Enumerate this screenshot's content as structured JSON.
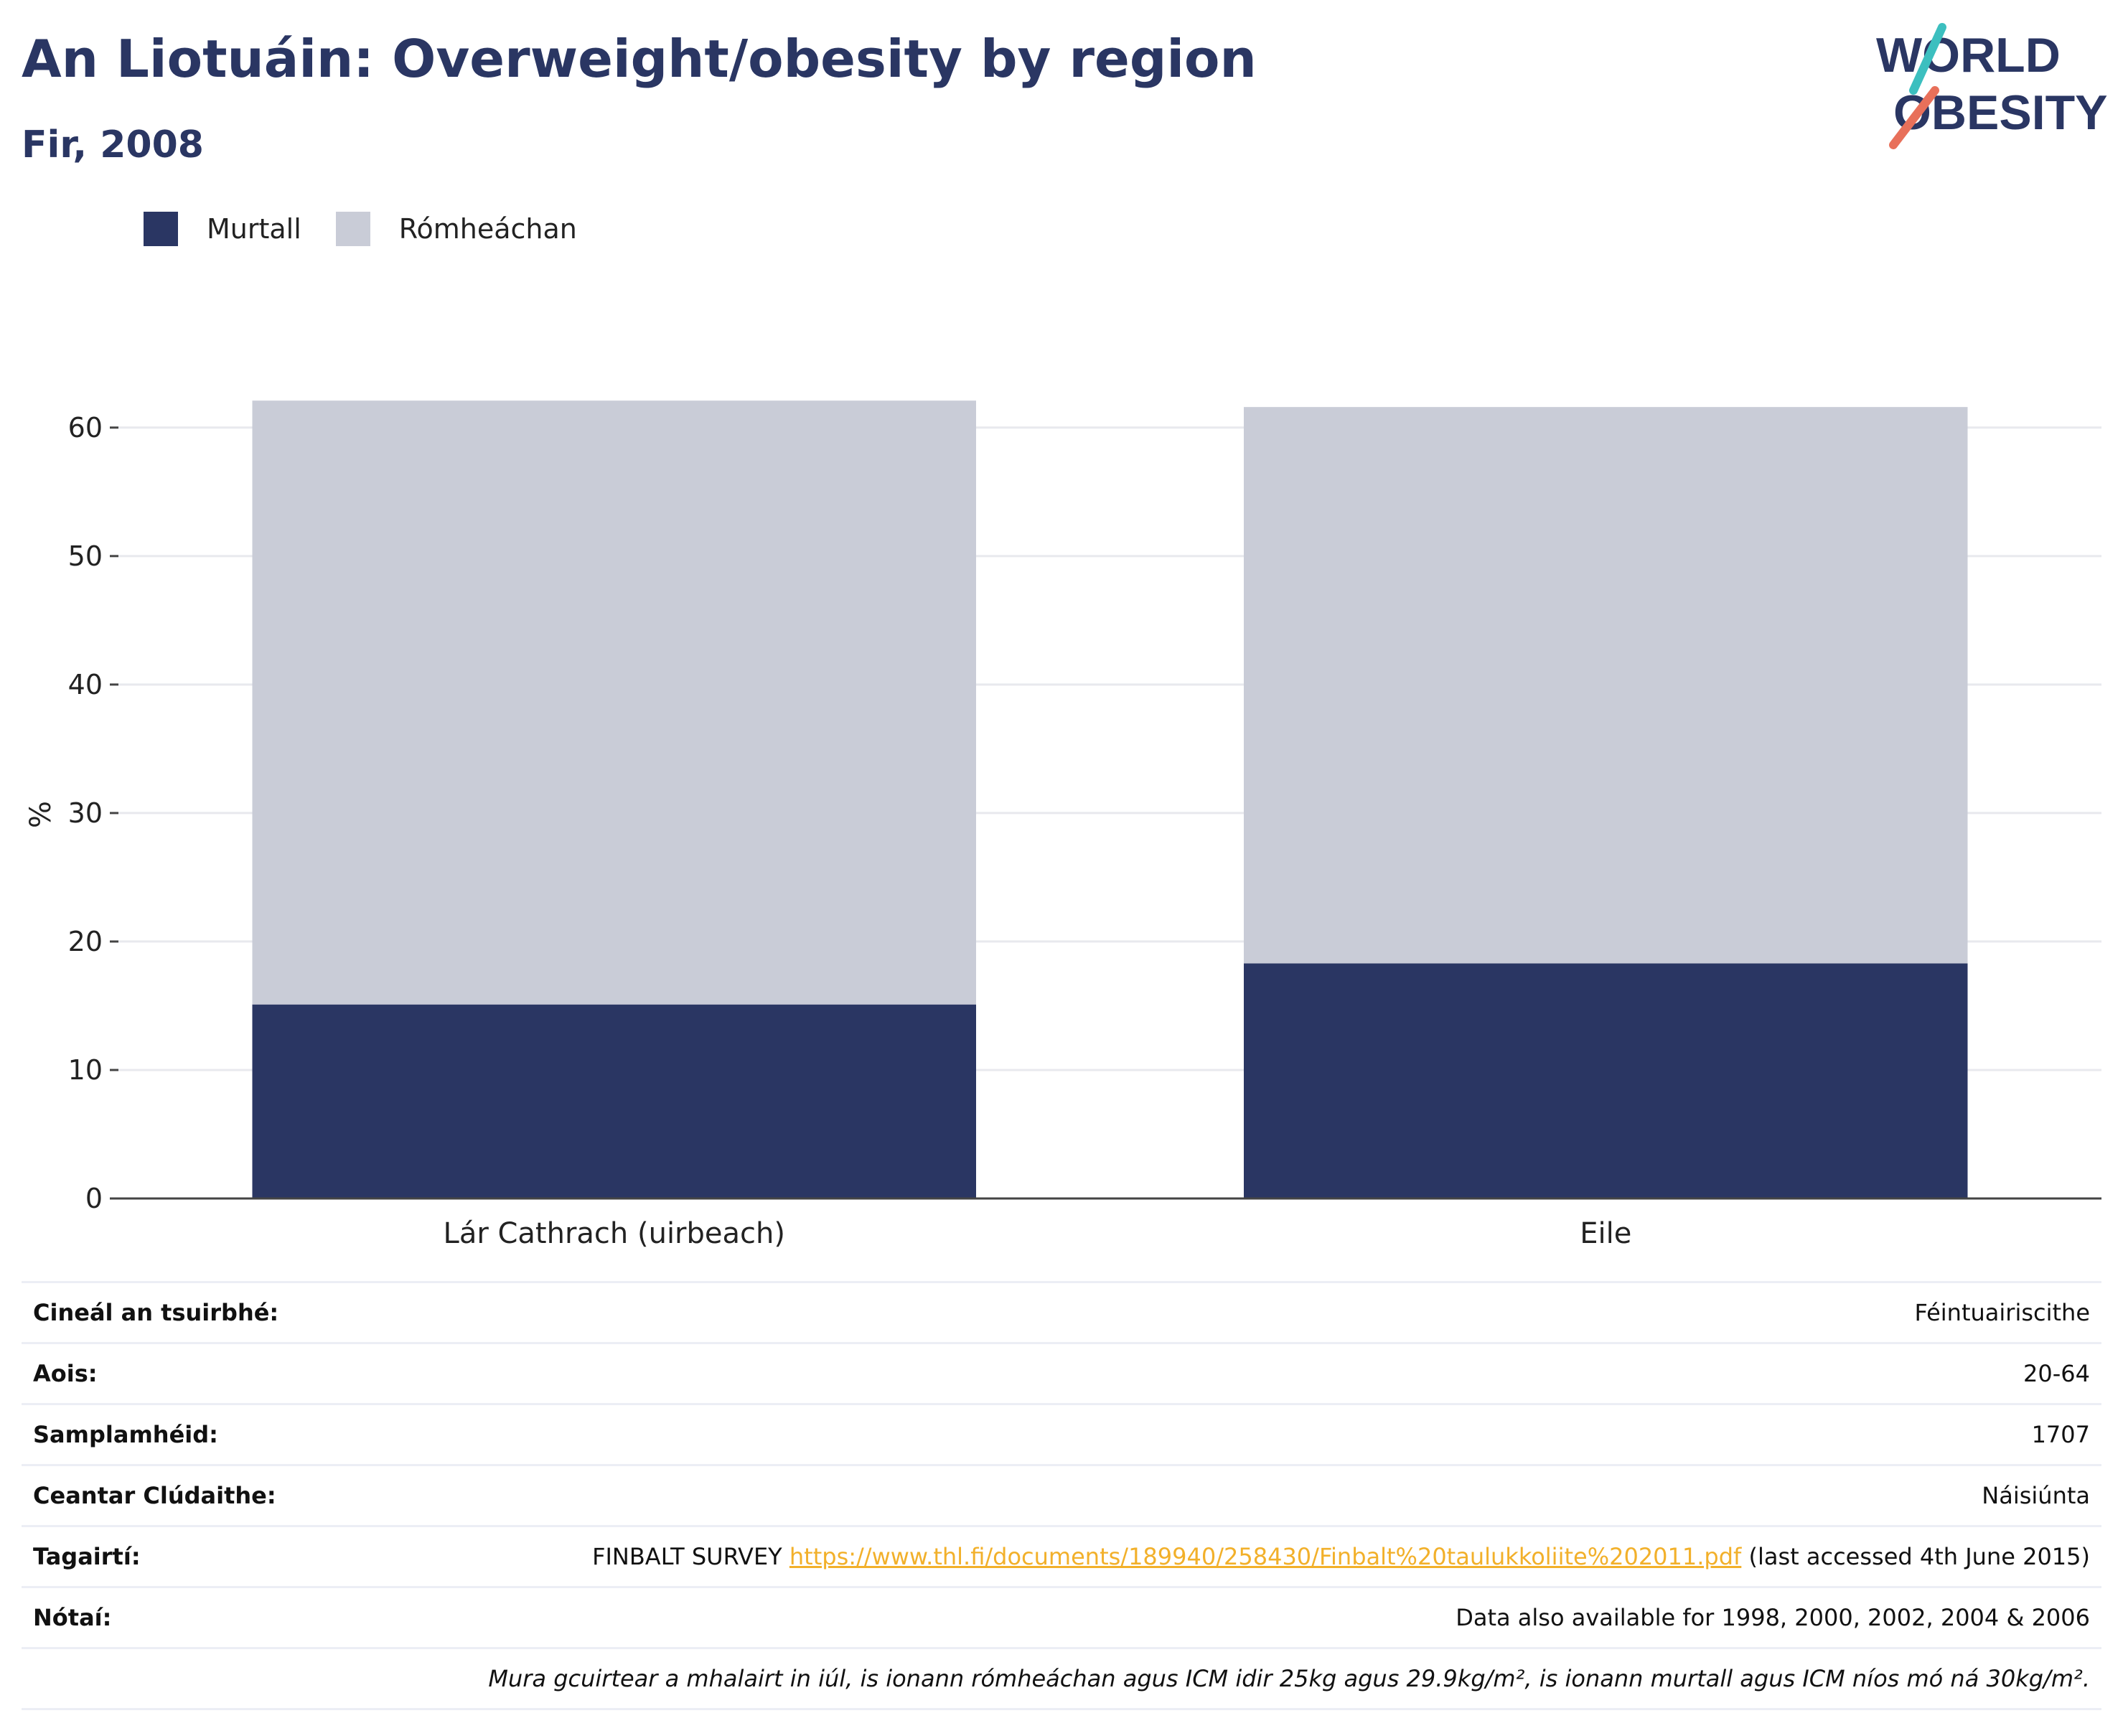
{
  "header": {
    "title": "An Liotuáin: Overweight/obesity by region",
    "subtitle": "Fir, 2008"
  },
  "logo": {
    "line1": "WORLD",
    "line2": "OBESITY"
  },
  "colors": {
    "obese": "#2a3663",
    "overweight": "#c9ccd7",
    "accent_teal": "#3cbfbf",
    "accent_coral": "#e8705a",
    "link": "#f2b02a"
  },
  "chart_data": {
    "type": "bar",
    "stacked": true,
    "categories": [
      "Lár Cathrach (uirbeach)",
      "Eile"
    ],
    "series": [
      {
        "name": "Murtall",
        "values": [
          15.1,
          18.3
        ]
      },
      {
        "name": "Rómheáchan",
        "values": [
          47.0,
          43.3
        ]
      }
    ],
    "ylabel": "%",
    "ylim": [
      0,
      62
    ],
    "yticks": [
      0,
      10,
      20,
      30,
      40,
      50,
      60
    ],
    "grid": true,
    "legend": "top-left"
  },
  "info": {
    "survey_type": {
      "label": "Cineál an tsuirbhé:",
      "value": "Féintuairiscithe"
    },
    "age": {
      "label": "Aois:",
      "value": "20-64"
    },
    "sample": {
      "label": "Samplamhéid:",
      "value": "1707"
    },
    "area": {
      "label": "Ceantar Clúdaithe:",
      "value": "Náisiúnta"
    },
    "refs": {
      "label": "Tagairtí:",
      "prefix": "FINBALT SURVEY ",
      "link": "https://www.thl.fi/documents/189940/258430/Finbalt%20taulukkoliite%202011.pdf",
      "suffix": " (last accessed 4th June 2015)"
    },
    "notes": {
      "label": "Nótaí:",
      "value": "Data also available for 1998, 2000, 2002, 2004 & 2006"
    },
    "definition": "Mura gcuirtear a mhalairt in iúl, is ionann rómheáchan agus ICM idir 25kg agus 29.9kg/m², is ionann murtall agus ICM níos mó ná 30kg/m²."
  }
}
